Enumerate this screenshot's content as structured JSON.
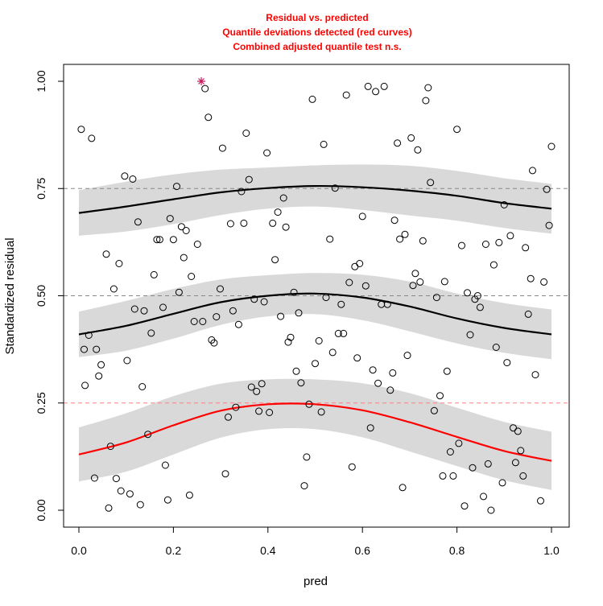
{
  "chart_data": {
    "type": "scatter",
    "title_lines": [
      "Residual vs. predicted",
      "Quantile deviations detected (red curves)",
      "Combined adjusted quantile test n.s."
    ],
    "xlabel": "pred",
    "ylabel": "Standardized residual",
    "xlim": [
      0,
      1
    ],
    "ylim": [
      0,
      1
    ],
    "x_ticks": [
      0.0,
      0.2,
      0.4,
      0.6,
      0.8,
      1.0
    ],
    "x_tick_labels": [
      "0.0",
      "0.2",
      "0.4",
      "0.6",
      "0.8",
      "1.0"
    ],
    "y_ticks": [
      0.0,
      0.25,
      0.5,
      0.75,
      1.0
    ],
    "y_tick_labels": [
      "0.00",
      "0.25",
      "0.50",
      "0.75",
      "1.00"
    ],
    "grid": false,
    "colors": {
      "title": "#ff0000",
      "points": "#000000",
      "outlier": "#c2185b",
      "band": "#d9d9d9",
      "curve_ok": "#000000",
      "curve_flagged": "#ff0000",
      "ref_line_ok": "#888888",
      "ref_line_flagged": "#ff8080"
    },
    "reference_lines": [
      {
        "y": 0.25,
        "flagged": true
      },
      {
        "y": 0.5,
        "flagged": false
      },
      {
        "y": 0.75,
        "flagged": false
      }
    ],
    "quantile_curves": [
      {
        "quantile": 0.25,
        "flagged": true,
        "x": [
          0.0,
          0.1,
          0.2,
          0.3,
          0.4,
          0.5,
          0.6,
          0.7,
          0.8,
          0.9,
          1.0
        ],
        "y": [
          0.13,
          0.158,
          0.198,
          0.232,
          0.247,
          0.247,
          0.233,
          0.205,
          0.171,
          0.138,
          0.115
        ],
        "band": [
          0.063,
          0.068,
          0.068,
          0.063,
          0.058,
          0.058,
          0.063,
          0.068,
          0.068,
          0.068,
          0.068
        ]
      },
      {
        "quantile": 0.5,
        "flagged": false,
        "x": [
          0.0,
          0.1,
          0.2,
          0.3,
          0.4,
          0.5,
          0.6,
          0.7,
          0.8,
          0.9,
          1.0
        ],
        "y": [
          0.41,
          0.43,
          0.458,
          0.485,
          0.5,
          0.505,
          0.496,
          0.475,
          0.447,
          0.425,
          0.41
        ],
        "band": [
          0.053,
          0.058,
          0.058,
          0.053,
          0.048,
          0.048,
          0.053,
          0.058,
          0.058,
          0.058,
          0.058
        ]
      },
      {
        "quantile": 0.75,
        "flagged": false,
        "x": [
          0.0,
          0.1,
          0.2,
          0.3,
          0.4,
          0.5,
          0.6,
          0.7,
          0.8,
          0.9,
          1.0
        ],
        "y": [
          0.693,
          0.708,
          0.725,
          0.741,
          0.751,
          0.756,
          0.753,
          0.745,
          0.733,
          0.716,
          0.703
        ],
        "band": [
          0.053,
          0.058,
          0.058,
          0.053,
          0.048,
          0.048,
          0.053,
          0.058,
          0.058,
          0.058,
          0.058
        ]
      }
    ],
    "outliers": [
      {
        "x": 0.259,
        "y": 1.0
      }
    ],
    "points": [
      [
        0.005,
        0.888
      ],
      [
        0.027,
        0.867
      ],
      [
        0.011,
        0.375
      ],
      [
        0.037,
        0.375
      ],
      [
        0.013,
        0.291
      ],
      [
        0.021,
        0.408
      ],
      [
        0.047,
        0.339
      ],
      [
        0.042,
        0.313
      ],
      [
        0.033,
        0.075
      ],
      [
        0.063,
        0.005
      ],
      [
        0.067,
        0.149
      ],
      [
        0.079,
        0.074
      ],
      [
        0.089,
        0.045
      ],
      [
        0.108,
        0.038
      ],
      [
        0.13,
        0.013
      ],
      [
        0.085,
        0.575
      ],
      [
        0.058,
        0.597
      ],
      [
        0.074,
        0.516
      ],
      [
        0.097,
        0.779
      ],
      [
        0.114,
        0.772
      ],
      [
        0.102,
        0.349
      ],
      [
        0.125,
        0.672
      ],
      [
        0.118,
        0.469
      ],
      [
        0.134,
        0.288
      ],
      [
        0.138,
        0.465
      ],
      [
        0.146,
        0.177
      ],
      [
        0.153,
        0.413
      ],
      [
        0.159,
        0.549
      ],
      [
        0.165,
        0.631
      ],
      [
        0.171,
        0.631
      ],
      [
        0.178,
        0.473
      ],
      [
        0.183,
        0.105
      ],
      [
        0.188,
        0.024
      ],
      [
        0.193,
        0.68
      ],
      [
        0.2,
        0.631
      ],
      [
        0.207,
        0.755
      ],
      [
        0.212,
        0.508
      ],
      [
        0.217,
        0.661
      ],
      [
        0.222,
        0.589
      ],
      [
        0.227,
        0.652
      ],
      [
        0.234,
        0.035
      ],
      [
        0.238,
        0.545
      ],
      [
        0.244,
        0.44
      ],
      [
        0.251,
        0.62
      ],
      [
        0.262,
        0.44
      ],
      [
        0.267,
        0.983
      ],
      [
        0.274,
        0.916
      ],
      [
        0.281,
        0.397
      ],
      [
        0.286,
        0.39
      ],
      [
        0.291,
        0.451
      ],
      [
        0.299,
        0.516
      ],
      [
        0.304,
        0.844
      ],
      [
        0.31,
        0.085
      ],
      [
        0.316,
        0.217
      ],
      [
        0.321,
        0.668
      ],
      [
        0.326,
        0.465
      ],
      [
        0.332,
        0.24
      ],
      [
        0.338,
        0.433
      ],
      [
        0.344,
        0.743
      ],
      [
        0.349,
        0.669
      ],
      [
        0.354,
        0.879
      ],
      [
        0.36,
        0.771
      ],
      [
        0.365,
        0.287
      ],
      [
        0.371,
        0.492
      ],
      [
        0.376,
        0.277
      ],
      [
        0.381,
        0.231
      ],
      [
        0.387,
        0.295
      ],
      [
        0.392,
        0.486
      ],
      [
        0.398,
        0.833
      ],
      [
        0.403,
        0.228
      ],
      [
        0.41,
        0.669
      ],
      [
        0.415,
        0.584
      ],
      [
        0.421,
        0.695
      ],
      [
        0.427,
        0.452
      ],
      [
        0.433,
        0.728
      ],
      [
        0.438,
        0.66
      ],
      [
        0.443,
        0.392
      ],
      [
        0.448,
        0.403
      ],
      [
        0.455,
        0.508
      ],
      [
        0.46,
        0.324
      ],
      [
        0.465,
        0.46
      ],
      [
        0.47,
        0.297
      ],
      [
        0.477,
        0.057
      ],
      [
        0.482,
        0.124
      ],
      [
        0.487,
        0.247
      ],
      [
        0.494,
        0.958
      ],
      [
        0.5,
        0.342
      ],
      [
        0.508,
        0.395
      ],
      [
        0.513,
        0.229
      ],
      [
        0.518,
        0.853
      ],
      [
        0.523,
        0.496
      ],
      [
        0.531,
        0.632
      ],
      [
        0.537,
        0.368
      ],
      [
        0.542,
        0.751
      ],
      [
        0.549,
        0.412
      ],
      [
        0.555,
        0.48
      ],
      [
        0.56,
        0.412
      ],
      [
        0.566,
        0.968
      ],
      [
        0.572,
        0.531
      ],
      [
        0.578,
        0.101
      ],
      [
        0.584,
        0.568
      ],
      [
        0.589,
        0.355
      ],
      [
        0.594,
        0.575
      ],
      [
        0.6,
        0.685
      ],
      [
        0.607,
        0.523
      ],
      [
        0.612,
        0.988
      ],
      [
        0.617,
        0.192
      ],
      [
        0.622,
        0.327
      ],
      [
        0.628,
        0.976
      ],
      [
        0.633,
        0.296
      ],
      [
        0.64,
        0.48
      ],
      [
        0.646,
        0.988
      ],
      [
        0.653,
        0.48
      ],
      [
        0.659,
        0.28
      ],
      [
        0.664,
        0.32
      ],
      [
        0.668,
        0.676
      ],
      [
        0.674,
        0.856
      ],
      [
        0.679,
        0.632
      ],
      [
        0.685,
        0.053
      ],
      [
        0.69,
        0.643
      ],
      [
        0.695,
        0.361
      ],
      [
        0.703,
        0.868
      ],
      [
        0.707,
        0.524
      ],
      [
        0.712,
        0.552
      ],
      [
        0.717,
        0.84
      ],
      [
        0.722,
        0.532
      ],
      [
        0.728,
        0.628
      ],
      [
        0.734,
        0.955
      ],
      [
        0.739,
        0.985
      ],
      [
        0.744,
        0.764
      ],
      [
        0.752,
        0.232
      ],
      [
        0.757,
        0.496
      ],
      [
        0.764,
        0.267
      ],
      [
        0.77,
        0.08
      ],
      [
        0.774,
        0.533
      ],
      [
        0.779,
        0.324
      ],
      [
        0.786,
        0.136
      ],
      [
        0.792,
        0.08
      ],
      [
        0.8,
        0.888
      ],
      [
        0.804,
        0.156
      ],
      [
        0.81,
        0.617
      ],
      [
        0.816,
        0.01
      ],
      [
        0.822,
        0.507
      ],
      [
        0.828,
        0.409
      ],
      [
        0.833,
        0.099
      ],
      [
        0.838,
        0.492
      ],
      [
        0.844,
        0.5
      ],
      [
        0.849,
        0.473
      ],
      [
        0.856,
        0.032
      ],
      [
        0.861,
        0.62
      ],
      [
        0.866,
        0.108
      ],
      [
        0.872,
        0.0
      ],
      [
        0.878,
        0.572
      ],
      [
        0.883,
        0.38
      ],
      [
        0.889,
        0.624
      ],
      [
        0.896,
        0.064
      ],
      [
        0.9,
        0.712
      ],
      [
        0.906,
        0.344
      ],
      [
        0.913,
        0.64
      ],
      [
        0.919,
        0.192
      ],
      [
        0.924,
        0.111
      ],
      [
        0.929,
        0.184
      ],
      [
        0.935,
        0.139
      ],
      [
        0.94,
        0.08
      ],
      [
        0.945,
        0.612
      ],
      [
        0.951,
        0.457
      ],
      [
        0.956,
        0.54
      ],
      [
        0.96,
        0.792
      ],
      [
        0.966,
        0.316
      ],
      [
        0.977,
        0.022
      ],
      [
        0.984,
        0.532
      ],
      [
        0.99,
        0.748
      ],
      [
        0.995,
        0.664
      ],
      [
        1.0,
        0.848
      ]
    ]
  }
}
